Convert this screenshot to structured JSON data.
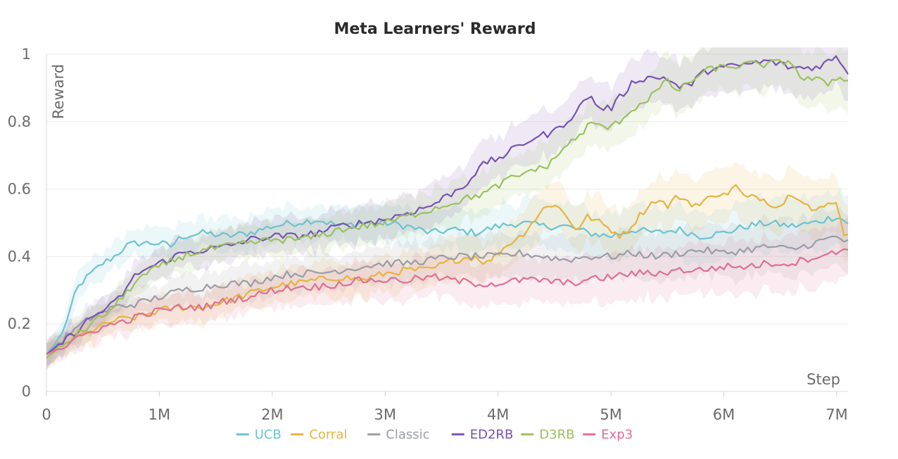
{
  "chart_data": {
    "type": "line",
    "title": "Meta Learners' Reward",
    "xlabel": "Step",
    "ylabel": "Reward",
    "xlim": [
      0,
      7100000
    ],
    "ylim": [
      0,
      1
    ],
    "x_ticks": [
      0,
      1000000,
      2000000,
      3000000,
      4000000,
      5000000,
      6000000,
      7000000
    ],
    "x_tick_labels": [
      "0",
      "1M",
      "2M",
      "3M",
      "4M",
      "5M",
      "6M",
      "7M"
    ],
    "y_ticks": [
      0,
      0.2,
      0.4,
      0.6,
      0.8,
      1
    ],
    "y_tick_labels": [
      "0",
      "0.2",
      "0.4",
      "0.6",
      "0.8",
      "1"
    ],
    "grid": true,
    "legend_position": "bottom-center",
    "series": [
      {
        "name": "UCB",
        "color": "#6cc3d0",
        "points": [
          [
            0,
            0.11
          ],
          [
            100000,
            0.15
          ],
          [
            200000,
            0.22
          ],
          [
            250000,
            0.29
          ],
          [
            300000,
            0.32
          ],
          [
            400000,
            0.35
          ],
          [
            500000,
            0.38
          ],
          [
            600000,
            0.4
          ],
          [
            700000,
            0.43
          ],
          [
            800000,
            0.44
          ],
          [
            1000000,
            0.44
          ],
          [
            1100000,
            0.43
          ],
          [
            1200000,
            0.46
          ],
          [
            1400000,
            0.47
          ],
          [
            1600000,
            0.46
          ],
          [
            1800000,
            0.47
          ],
          [
            2000000,
            0.49
          ],
          [
            2200000,
            0.5
          ],
          [
            2400000,
            0.51
          ],
          [
            2600000,
            0.49
          ],
          [
            2800000,
            0.5
          ],
          [
            3000000,
            0.5
          ],
          [
            3200000,
            0.49
          ],
          [
            3400000,
            0.47
          ],
          [
            3600000,
            0.48
          ],
          [
            3800000,
            0.47
          ],
          [
            4000000,
            0.49
          ],
          [
            4200000,
            0.5
          ],
          [
            4400000,
            0.49
          ],
          [
            4600000,
            0.49
          ],
          [
            4800000,
            0.47
          ],
          [
            5000000,
            0.46
          ],
          [
            5200000,
            0.48
          ],
          [
            5400000,
            0.47
          ],
          [
            5600000,
            0.48
          ],
          [
            5800000,
            0.46
          ],
          [
            6000000,
            0.47
          ],
          [
            6200000,
            0.49
          ],
          [
            6400000,
            0.5
          ],
          [
            6600000,
            0.49
          ],
          [
            6800000,
            0.5
          ],
          [
            7000000,
            0.52
          ],
          [
            7100000,
            0.5
          ]
        ]
      },
      {
        "name": "Corral",
        "color": "#e6b440",
        "points": [
          [
            0,
            0.11
          ],
          [
            200000,
            0.15
          ],
          [
            400000,
            0.18
          ],
          [
            600000,
            0.21
          ],
          [
            800000,
            0.22
          ],
          [
            1000000,
            0.24
          ],
          [
            1200000,
            0.25
          ],
          [
            1400000,
            0.25
          ],
          [
            1600000,
            0.27
          ],
          [
            1800000,
            0.29
          ],
          [
            2000000,
            0.31
          ],
          [
            2200000,
            0.32
          ],
          [
            2400000,
            0.33
          ],
          [
            2600000,
            0.34
          ],
          [
            2800000,
            0.33
          ],
          [
            3000000,
            0.35
          ],
          [
            3200000,
            0.36
          ],
          [
            3400000,
            0.36
          ],
          [
            3600000,
            0.39
          ],
          [
            3800000,
            0.4
          ],
          [
            3900000,
            0.38
          ],
          [
            4000000,
            0.41
          ],
          [
            4100000,
            0.44
          ],
          [
            4200000,
            0.46
          ],
          [
            4300000,
            0.5
          ],
          [
            4400000,
            0.54
          ],
          [
            4500000,
            0.56
          ],
          [
            4600000,
            0.52
          ],
          [
            4700000,
            0.48
          ],
          [
            4800000,
            0.52
          ],
          [
            4900000,
            0.5
          ],
          [
            5000000,
            0.48
          ],
          [
            5100000,
            0.46
          ],
          [
            5200000,
            0.5
          ],
          [
            5300000,
            0.54
          ],
          [
            5400000,
            0.57
          ],
          [
            5500000,
            0.55
          ],
          [
            5600000,
            0.58
          ],
          [
            5700000,
            0.56
          ],
          [
            5800000,
            0.55
          ],
          [
            5900000,
            0.59
          ],
          [
            6000000,
            0.58
          ],
          [
            6100000,
            0.61
          ],
          [
            6200000,
            0.57
          ],
          [
            6300000,
            0.58
          ],
          [
            6400000,
            0.56
          ],
          [
            6500000,
            0.55
          ],
          [
            6600000,
            0.59
          ],
          [
            6700000,
            0.57
          ],
          [
            6800000,
            0.53
          ],
          [
            6900000,
            0.55
          ],
          [
            7000000,
            0.57
          ],
          [
            7050000,
            0.47
          ],
          [
            7100000,
            0.47
          ]
        ]
      },
      {
        "name": "Classic",
        "color": "#9a9da6",
        "points": [
          [
            0,
            0.11
          ],
          [
            200000,
            0.17
          ],
          [
            400000,
            0.22
          ],
          [
            600000,
            0.25
          ],
          [
            800000,
            0.26
          ],
          [
            1000000,
            0.28
          ],
          [
            1200000,
            0.3
          ],
          [
            1400000,
            0.31
          ],
          [
            1600000,
            0.32
          ],
          [
            1800000,
            0.32
          ],
          [
            2000000,
            0.34
          ],
          [
            2200000,
            0.35
          ],
          [
            2400000,
            0.35
          ],
          [
            2600000,
            0.36
          ],
          [
            2800000,
            0.37
          ],
          [
            3000000,
            0.38
          ],
          [
            3200000,
            0.38
          ],
          [
            3400000,
            0.39
          ],
          [
            3600000,
            0.4
          ],
          [
            3800000,
            0.4
          ],
          [
            4000000,
            0.4
          ],
          [
            4200000,
            0.41
          ],
          [
            4400000,
            0.4
          ],
          [
            4600000,
            0.39
          ],
          [
            4800000,
            0.4
          ],
          [
            5000000,
            0.4
          ],
          [
            5200000,
            0.41
          ],
          [
            5400000,
            0.4
          ],
          [
            5600000,
            0.41
          ],
          [
            5800000,
            0.42
          ],
          [
            6000000,
            0.41
          ],
          [
            6200000,
            0.42
          ],
          [
            6400000,
            0.43
          ],
          [
            6600000,
            0.42
          ],
          [
            6800000,
            0.44
          ],
          [
            7000000,
            0.46
          ],
          [
            7100000,
            0.44
          ]
        ]
      },
      {
        "name": "ED2RB",
        "color": "#7a52b3",
        "points": [
          [
            0,
            0.11
          ],
          [
            200000,
            0.16
          ],
          [
            400000,
            0.22
          ],
          [
            600000,
            0.26
          ],
          [
            700000,
            0.3
          ],
          [
            800000,
            0.35
          ],
          [
            1000000,
            0.38
          ],
          [
            1200000,
            0.41
          ],
          [
            1400000,
            0.42
          ],
          [
            1600000,
            0.43
          ],
          [
            1800000,
            0.45
          ],
          [
            2000000,
            0.46
          ],
          [
            2200000,
            0.46
          ],
          [
            2400000,
            0.47
          ],
          [
            2600000,
            0.49
          ],
          [
            2800000,
            0.5
          ],
          [
            3000000,
            0.51
          ],
          [
            3200000,
            0.53
          ],
          [
            3400000,
            0.55
          ],
          [
            3600000,
            0.59
          ],
          [
            3700000,
            0.61
          ],
          [
            3800000,
            0.65
          ],
          [
            3900000,
            0.68
          ],
          [
            4000000,
            0.69
          ],
          [
            4100000,
            0.71
          ],
          [
            4200000,
            0.73
          ],
          [
            4300000,
            0.75
          ],
          [
            4400000,
            0.76
          ],
          [
            4500000,
            0.77
          ],
          [
            4600000,
            0.8
          ],
          [
            4700000,
            0.83
          ],
          [
            4800000,
            0.88
          ],
          [
            4900000,
            0.84
          ],
          [
            5000000,
            0.84
          ],
          [
            5100000,
            0.88
          ],
          [
            5200000,
            0.92
          ],
          [
            5300000,
            0.93
          ],
          [
            5400000,
            0.93
          ],
          [
            5500000,
            0.93
          ],
          [
            5600000,
            0.9
          ],
          [
            5700000,
            0.91
          ],
          [
            5800000,
            0.94
          ],
          [
            5900000,
            0.96
          ],
          [
            6000000,
            0.96
          ],
          [
            6200000,
            0.97
          ],
          [
            6400000,
            0.98
          ],
          [
            6600000,
            0.96
          ],
          [
            6800000,
            0.96
          ],
          [
            7000000,
            0.99
          ],
          [
            7100000,
            0.95
          ]
        ]
      },
      {
        "name": "D3RB",
        "color": "#9cc15e",
        "points": [
          [
            0,
            0.1
          ],
          [
            200000,
            0.15
          ],
          [
            400000,
            0.2
          ],
          [
            600000,
            0.25
          ],
          [
            700000,
            0.29
          ],
          [
            800000,
            0.33
          ],
          [
            1000000,
            0.37
          ],
          [
            1200000,
            0.4
          ],
          [
            1400000,
            0.42
          ],
          [
            1600000,
            0.43
          ],
          [
            1800000,
            0.44
          ],
          [
            2000000,
            0.45
          ],
          [
            2200000,
            0.45
          ],
          [
            2400000,
            0.46
          ],
          [
            2600000,
            0.48
          ],
          [
            2800000,
            0.49
          ],
          [
            3000000,
            0.5
          ],
          [
            3200000,
            0.52
          ],
          [
            3400000,
            0.54
          ],
          [
            3600000,
            0.56
          ],
          [
            3800000,
            0.58
          ],
          [
            3900000,
            0.59
          ],
          [
            4000000,
            0.61
          ],
          [
            4100000,
            0.63
          ],
          [
            4200000,
            0.64
          ],
          [
            4300000,
            0.66
          ],
          [
            4400000,
            0.66
          ],
          [
            4500000,
            0.69
          ],
          [
            4600000,
            0.73
          ],
          [
            4700000,
            0.75
          ],
          [
            4800000,
            0.79
          ],
          [
            4900000,
            0.79
          ],
          [
            5000000,
            0.78
          ],
          [
            5100000,
            0.81
          ],
          [
            5200000,
            0.84
          ],
          [
            5300000,
            0.86
          ],
          [
            5400000,
            0.89
          ],
          [
            5500000,
            0.92
          ],
          [
            5600000,
            0.89
          ],
          [
            5700000,
            0.92
          ],
          [
            5800000,
            0.94
          ],
          [
            5900000,
            0.96
          ],
          [
            6000000,
            0.96
          ],
          [
            6200000,
            0.97
          ],
          [
            6400000,
            0.97
          ],
          [
            6600000,
            0.98
          ],
          [
            6700000,
            0.92
          ],
          [
            6800000,
            0.93
          ],
          [
            6900000,
            0.91
          ],
          [
            7000000,
            0.93
          ],
          [
            7100000,
            0.93
          ]
        ]
      },
      {
        "name": "Exp3",
        "color": "#df6f94",
        "points": [
          [
            0,
            0.11
          ],
          [
            200000,
            0.14
          ],
          [
            400000,
            0.18
          ],
          [
            600000,
            0.2
          ],
          [
            800000,
            0.22
          ],
          [
            1000000,
            0.24
          ],
          [
            1200000,
            0.25
          ],
          [
            1400000,
            0.25
          ],
          [
            1600000,
            0.27
          ],
          [
            1800000,
            0.28
          ],
          [
            2000000,
            0.3
          ],
          [
            2200000,
            0.31
          ],
          [
            2400000,
            0.31
          ],
          [
            2600000,
            0.32
          ],
          [
            2800000,
            0.33
          ],
          [
            3000000,
            0.33
          ],
          [
            3200000,
            0.33
          ],
          [
            3400000,
            0.34
          ],
          [
            3600000,
            0.33
          ],
          [
            3800000,
            0.32
          ],
          [
            4000000,
            0.32
          ],
          [
            4200000,
            0.33
          ],
          [
            4400000,
            0.33
          ],
          [
            4600000,
            0.32
          ],
          [
            4800000,
            0.33
          ],
          [
            5000000,
            0.34
          ],
          [
            5200000,
            0.35
          ],
          [
            5400000,
            0.35
          ],
          [
            5600000,
            0.36
          ],
          [
            5800000,
            0.36
          ],
          [
            6000000,
            0.37
          ],
          [
            6200000,
            0.37
          ],
          [
            6400000,
            0.38
          ],
          [
            6600000,
            0.38
          ],
          [
            6800000,
            0.4
          ],
          [
            7000000,
            0.41
          ],
          [
            7100000,
            0.43
          ]
        ]
      }
    ]
  }
}
